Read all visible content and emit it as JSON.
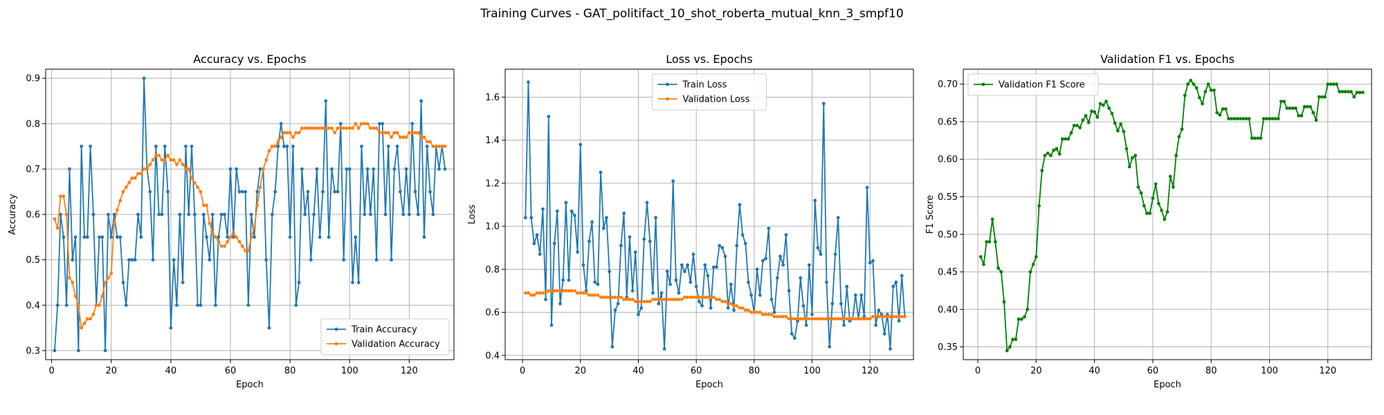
{
  "figure": {
    "suptitle": "Training Curves - GAT_politifact_10_shot_roberta_mutual_knn_3_smpf10"
  },
  "chart_data": [
    {
      "type": "line",
      "title": "Accuracy vs. Epochs",
      "xlabel": "Epoch",
      "ylabel": "Accuracy",
      "xlim": [
        -2,
        135
      ],
      "ylim": [
        0.28,
        0.92
      ],
      "xticks": [
        0,
        20,
        40,
        60,
        80,
        100,
        120
      ],
      "yticks": [
        0.3,
        0.4,
        0.5,
        0.6,
        0.7,
        0.8,
        0.9
      ],
      "ytick_labels": [
        "0.3",
        "0.4",
        "0.5",
        "0.6",
        "0.7",
        "0.8",
        "0.9"
      ],
      "grid": true,
      "legend": "lower-right",
      "x": [
        1,
        2,
        3,
        4,
        5,
        6,
        7,
        8,
        9,
        10,
        11,
        12,
        13,
        14,
        15,
        16,
        17,
        18,
        19,
        20,
        21,
        22,
        23,
        24,
        25,
        26,
        27,
        28,
        29,
        30,
        31,
        32,
        33,
        34,
        35,
        36,
        37,
        38,
        39,
        40,
        41,
        42,
        43,
        44,
        45,
        46,
        47,
        48,
        49,
        50,
        51,
        52,
        53,
        54,
        55,
        56,
        57,
        58,
        59,
        60,
        61,
        62,
        63,
        64,
        65,
        66,
        67,
        68,
        69,
        70,
        71,
        72,
        73,
        74,
        75,
        76,
        77,
        78,
        79,
        80,
        81,
        82,
        83,
        84,
        85,
        86,
        87,
        88,
        89,
        90,
        91,
        92,
        93,
        94,
        95,
        96,
        97,
        98,
        99,
        100,
        101,
        102,
        103,
        104,
        105,
        106,
        107,
        108,
        109,
        110,
        111,
        112,
        113,
        114,
        115,
        116,
        117,
        118,
        119,
        120,
        121,
        122,
        123,
        124,
        125,
        126,
        127,
        128,
        129,
        130,
        131,
        132
      ],
      "series": [
        {
          "name": "Train Accuracy",
          "color": "#1f77b4",
          "values": [
            0.3,
            0.4,
            0.6,
            0.55,
            0.4,
            0.7,
            0.5,
            0.55,
            0.3,
            0.75,
            0.55,
            0.55,
            0.75,
            0.6,
            0.4,
            0.55,
            0.55,
            0.3,
            0.6,
            0.55,
            0.6,
            0.55,
            0.55,
            0.45,
            0.4,
            0.5,
            0.5,
            0.5,
            0.6,
            0.55,
            0.9,
            0.7,
            0.65,
            0.5,
            0.75,
            0.6,
            0.6,
            0.75,
            0.65,
            0.35,
            0.5,
            0.4,
            0.6,
            0.45,
            0.75,
            0.6,
            0.75,
            0.6,
            0.4,
            0.4,
            0.6,
            0.55,
            0.5,
            0.6,
            0.4,
            0.55,
            0.6,
            0.6,
            0.55,
            0.7,
            0.55,
            0.7,
            0.65,
            0.65,
            0.65,
            0.4,
            0.6,
            0.55,
            0.65,
            0.7,
            0.7,
            0.5,
            0.35,
            0.6,
            0.65,
            0.75,
            0.8,
            0.75,
            0.75,
            0.55,
            0.75,
            0.4,
            0.45,
            0.7,
            0.6,
            0.65,
            0.5,
            0.6,
            0.7,
            0.55,
            0.65,
            0.85,
            0.55,
            0.7,
            0.65,
            0.65,
            0.8,
            0.5,
            0.7,
            0.7,
            0.45,
            0.55,
            0.45,
            0.75,
            0.6,
            0.7,
            0.6,
            0.7,
            0.5,
            0.8,
            0.8,
            0.6,
            0.75,
            0.5,
            0.7,
            0.75,
            0.65,
            0.6,
            0.7,
            0.6,
            0.8,
            0.65,
            0.6,
            0.85,
            0.55,
            0.75,
            0.65,
            0.6,
            0.75,
            0.7,
            0.75,
            0.7
          ]
        },
        {
          "name": "Validation Accuracy",
          "color": "#ff7f0e",
          "values": [
            0.59,
            0.57,
            0.64,
            0.64,
            0.6,
            0.46,
            0.45,
            0.42,
            0.4,
            0.35,
            0.36,
            0.37,
            0.37,
            0.38,
            0.4,
            0.4,
            0.42,
            0.45,
            0.46,
            0.47,
            0.58,
            0.61,
            0.63,
            0.65,
            0.66,
            0.67,
            0.68,
            0.68,
            0.69,
            0.69,
            0.7,
            0.7,
            0.71,
            0.72,
            0.73,
            0.73,
            0.72,
            0.72,
            0.73,
            0.72,
            0.72,
            0.71,
            0.72,
            0.71,
            0.7,
            0.7,
            0.68,
            0.67,
            0.66,
            0.65,
            0.62,
            0.62,
            0.58,
            0.56,
            0.55,
            0.54,
            0.53,
            0.53,
            0.54,
            0.55,
            0.56,
            0.55,
            0.54,
            0.53,
            0.52,
            0.52,
            0.55,
            0.57,
            0.62,
            0.66,
            0.7,
            0.72,
            0.74,
            0.75,
            0.75,
            0.76,
            0.77,
            0.78,
            0.78,
            0.78,
            0.77,
            0.78,
            0.78,
            0.79,
            0.79,
            0.79,
            0.79,
            0.79,
            0.79,
            0.79,
            0.79,
            0.79,
            0.79,
            0.79,
            0.78,
            0.79,
            0.79,
            0.79,
            0.79,
            0.79,
            0.79,
            0.8,
            0.79,
            0.8,
            0.8,
            0.8,
            0.79,
            0.79,
            0.79,
            0.78,
            0.78,
            0.78,
            0.78,
            0.77,
            0.78,
            0.78,
            0.77,
            0.77,
            0.77,
            0.78,
            0.78,
            0.78,
            0.78,
            0.77,
            0.77,
            0.76,
            0.76,
            0.75,
            0.75,
            0.75,
            0.75,
            0.75
          ]
        }
      ]
    },
    {
      "type": "line",
      "title": "Loss vs. Epochs",
      "xlabel": "Epoch",
      "ylabel": "Loss",
      "xlim": [
        -6,
        135
      ],
      "ylim": [
        0.38,
        1.73
      ],
      "xticks": [
        0,
        20,
        40,
        60,
        80,
        100,
        120
      ],
      "yticks": [
        0.4,
        0.6,
        0.8,
        1.0,
        1.2,
        1.4,
        1.6
      ],
      "ytick_labels": [
        "0.4",
        "0.6",
        "0.8",
        "1.0",
        "1.2",
        "1.4",
        "1.6"
      ],
      "grid": true,
      "legend": "upper-center",
      "x": [
        1,
        2,
        3,
        4,
        5,
        6,
        7,
        8,
        9,
        10,
        11,
        12,
        13,
        14,
        15,
        16,
        17,
        18,
        19,
        20,
        21,
        22,
        23,
        24,
        25,
        26,
        27,
        28,
        29,
        30,
        31,
        32,
        33,
        34,
        35,
        36,
        37,
        38,
        39,
        40,
        41,
        42,
        43,
        44,
        45,
        46,
        47,
        48,
        49,
        50,
        51,
        52,
        53,
        54,
        55,
        56,
        57,
        58,
        59,
        60,
        61,
        62,
        63,
        64,
        65,
        66,
        67,
        68,
        69,
        70,
        71,
        72,
        73,
        74,
        75,
        76,
        77,
        78,
        79,
        80,
        81,
        82,
        83,
        84,
        85,
        86,
        87,
        88,
        89,
        90,
        91,
        92,
        93,
        94,
        95,
        96,
        97,
        98,
        99,
        100,
        101,
        102,
        103,
        104,
        105,
        106,
        107,
        108,
        109,
        110,
        111,
        112,
        113,
        114,
        115,
        116,
        117,
        118,
        119,
        120,
        121,
        122,
        123,
        124,
        125,
        126,
        127,
        128,
        129,
        130,
        131,
        132
      ],
      "series": [
        {
          "name": "Train Loss",
          "color": "#1f77b4",
          "values": [
            1.04,
            1.67,
            1.04,
            0.92,
            0.96,
            0.87,
            1.08,
            0.66,
            1.51,
            0.54,
            0.92,
            1.07,
            0.64,
            0.75,
            1.11,
            0.75,
            1.07,
            1.05,
            0.88,
            1.38,
            0.82,
            0.7,
            0.93,
            1.02,
            0.74,
            0.73,
            1.25,
            0.99,
            1.04,
            0.79,
            0.44,
            0.61,
            0.64,
            0.91,
            1.06,
            0.67,
            0.95,
            0.7,
            0.88,
            0.59,
            0.62,
            0.94,
            1.11,
            0.93,
            0.69,
            1.04,
            0.64,
            0.69,
            0.43,
            0.79,
            0.73,
            1.21,
            0.75,
            0.69,
            0.82,
            0.79,
            0.82,
            0.74,
            0.87,
            0.72,
            0.65,
            0.63,
            0.82,
            0.77,
            0.62,
            0.81,
            0.81,
            0.91,
            0.9,
            0.86,
            0.62,
            0.73,
            0.61,
            0.91,
            1.1,
            0.96,
            0.92,
            0.74,
            0.68,
            0.6,
            0.8,
            0.68,
            0.84,
            0.85,
            0.99,
            0.66,
            0.6,
            0.76,
            0.86,
            0.82,
            0.96,
            0.7,
            0.5,
            0.48,
            0.56,
            0.76,
            0.63,
            0.54,
            0.82,
            0.59,
            1.12,
            0.9,
            0.87,
            1.57,
            0.74,
            0.44,
            0.64,
            0.87,
            1.04,
            0.64,
            0.54,
            0.72,
            0.56,
            0.57,
            0.68,
            0.57,
            0.68,
            0.58,
            1.18,
            0.83,
            0.84,
            0.54,
            0.61,
            0.59,
            0.5,
            0.59,
            0.43,
            0.72,
            0.74,
            0.56,
            0.77,
            0.58
          ]
        },
        {
          "name": "Validation Loss",
          "color": "#ff7f0e",
          "values": [
            0.69,
            0.69,
            0.68,
            0.68,
            0.69,
            0.69,
            0.69,
            0.69,
            0.7,
            0.7,
            0.7,
            0.7,
            0.7,
            0.7,
            0.7,
            0.7,
            0.7,
            0.7,
            0.69,
            0.69,
            0.69,
            0.69,
            0.68,
            0.68,
            0.68,
            0.68,
            0.67,
            0.67,
            0.67,
            0.67,
            0.67,
            0.67,
            0.67,
            0.67,
            0.66,
            0.66,
            0.66,
            0.66,
            0.65,
            0.65,
            0.65,
            0.65,
            0.65,
            0.65,
            0.66,
            0.66,
            0.66,
            0.66,
            0.66,
            0.66,
            0.66,
            0.66,
            0.66,
            0.66,
            0.66,
            0.67,
            0.67,
            0.67,
            0.67,
            0.67,
            0.67,
            0.67,
            0.67,
            0.67,
            0.67,
            0.67,
            0.66,
            0.66,
            0.65,
            0.65,
            0.64,
            0.64,
            0.63,
            0.63,
            0.62,
            0.62,
            0.61,
            0.61,
            0.6,
            0.6,
            0.6,
            0.6,
            0.59,
            0.59,
            0.59,
            0.59,
            0.58,
            0.58,
            0.58,
            0.58,
            0.58,
            0.57,
            0.57,
            0.57,
            0.57,
            0.57,
            0.57,
            0.57,
            0.57,
            0.57,
            0.57,
            0.57,
            0.57,
            0.57,
            0.57,
            0.57,
            0.57,
            0.57,
            0.57,
            0.57,
            0.57,
            0.57,
            0.57,
            0.57,
            0.57,
            0.57,
            0.57,
            0.57,
            0.57,
            0.57,
            0.58,
            0.58,
            0.58,
            0.58,
            0.58,
            0.58,
            0.58,
            0.58,
            0.58,
            0.58,
            0.58,
            0.58
          ]
        }
      ]
    },
    {
      "type": "line",
      "title": "Validation F1 vs. Epochs",
      "xlabel": "Epoch",
      "ylabel": "F1 Score",
      "xlim": [
        -5,
        135
      ],
      "ylim": [
        0.333,
        0.72
      ],
      "xticks": [
        0,
        20,
        40,
        60,
        80,
        100,
        120
      ],
      "yticks": [
        0.35,
        0.4,
        0.45,
        0.5,
        0.55,
        0.6,
        0.65,
        0.7
      ],
      "ytick_labels": [
        "0.35",
        "0.40",
        "0.45",
        "0.50",
        "0.55",
        "0.60",
        "0.65",
        "0.70"
      ],
      "grid": true,
      "legend": "upper-left",
      "x": [
        1,
        2,
        3,
        4,
        5,
        6,
        7,
        8,
        9,
        10,
        11,
        12,
        13,
        14,
        15,
        16,
        17,
        18,
        19,
        20,
        21,
        22,
        23,
        24,
        25,
        26,
        27,
        28,
        29,
        30,
        31,
        32,
        33,
        34,
        35,
        36,
        37,
        38,
        39,
        40,
        41,
        42,
        43,
        44,
        45,
        46,
        47,
        48,
        49,
        50,
        51,
        52,
        53,
        54,
        55,
        56,
        57,
        58,
        59,
        60,
        61,
        62,
        63,
        64,
        65,
        66,
        67,
        68,
        69,
        70,
        71,
        72,
        73,
        74,
        75,
        76,
        77,
        78,
        79,
        80,
        81,
        82,
        83,
        84,
        85,
        86,
        87,
        88,
        89,
        90,
        91,
        92,
        93,
        94,
        95,
        96,
        97,
        98,
        99,
        100,
        101,
        102,
        103,
        104,
        105,
        106,
        107,
        108,
        109,
        110,
        111,
        112,
        113,
        114,
        115,
        116,
        117,
        118,
        119,
        120,
        121,
        122,
        123,
        124,
        125,
        126,
        127,
        128,
        129,
        130,
        131,
        132
      ],
      "series": [
        {
          "name": "Validation F1 Score",
          "color": "#008000",
          "values": [
            0.47,
            0.46,
            0.49,
            0.49,
            0.52,
            0.49,
            0.455,
            0.45,
            0.41,
            0.345,
            0.35,
            0.36,
            0.36,
            0.387,
            0.387,
            0.39,
            0.4,
            0.45,
            0.46,
            0.47,
            0.538,
            0.585,
            0.605,
            0.608,
            0.605,
            0.612,
            0.614,
            0.607,
            0.627,
            0.627,
            0.627,
            0.635,
            0.645,
            0.645,
            0.642,
            0.652,
            0.658,
            0.649,
            0.664,
            0.663,
            0.656,
            0.674,
            0.672,
            0.677,
            0.668,
            0.661,
            0.648,
            0.638,
            0.647,
            0.637,
            0.614,
            0.59,
            0.602,
            0.605,
            0.563,
            0.555,
            0.538,
            0.528,
            0.528,
            0.548,
            0.567,
            0.541,
            0.532,
            0.52,
            0.53,
            0.577,
            0.563,
            0.605,
            0.63,
            0.64,
            0.685,
            0.7,
            0.705,
            0.7,
            0.695,
            0.682,
            0.674,
            0.69,
            0.7,
            0.692,
            0.692,
            0.662,
            0.659,
            0.667,
            0.667,
            0.654,
            0.654,
            0.654,
            0.654,
            0.654,
            0.654,
            0.654,
            0.654,
            0.628,
            0.628,
            0.628,
            0.628,
            0.654,
            0.654,
            0.654,
            0.654,
            0.654,
            0.654,
            0.677,
            0.677,
            0.668,
            0.668,
            0.668,
            0.668,
            0.658,
            0.658,
            0.67,
            0.67,
            0.67,
            0.662,
            0.652,
            0.683,
            0.683,
            0.683,
            0.7,
            0.7,
            0.7,
            0.7,
            0.69,
            0.69,
            0.69,
            0.69,
            0.69,
            0.683,
            0.689,
            0.689,
            0.689
          ]
        }
      ]
    }
  ]
}
